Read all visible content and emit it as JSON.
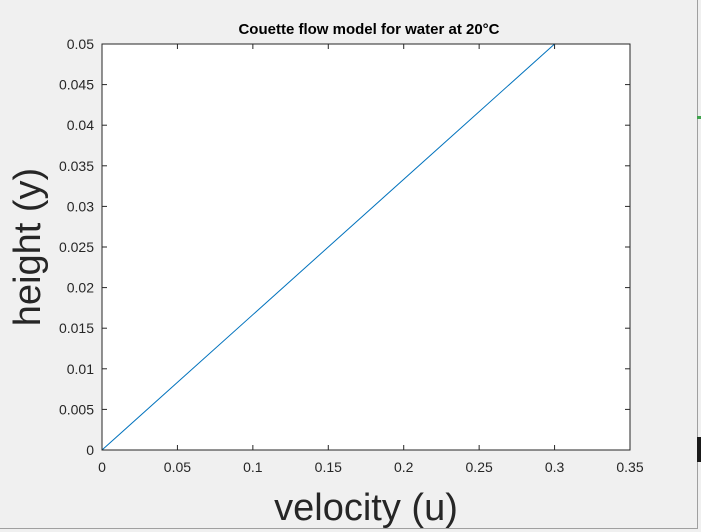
{
  "chart_data": {
    "type": "line",
    "title": "Couette flow model for water at 20°C",
    "xlabel": "velocity (u)",
    "ylabel": "height (y)",
    "xlim": [
      0,
      0.35
    ],
    "ylim": [
      0,
      0.05
    ],
    "xticks": [
      0,
      0.05,
      0.1,
      0.15,
      0.2,
      0.25,
      0.3,
      0.35
    ],
    "xtick_labels": [
      "0",
      "0.05",
      "0.1",
      "0.15",
      "0.2",
      "0.25",
      "0.3",
      "0.35"
    ],
    "yticks": [
      0,
      0.005,
      0.01,
      0.015,
      0.02,
      0.025,
      0.03,
      0.035,
      0.04,
      0.045,
      0.05
    ],
    "ytick_labels": [
      "0",
      "0.005",
      "0.01",
      "0.015",
      "0.02",
      "0.025",
      "0.03",
      "0.035",
      "0.04",
      "0.045",
      "0.05"
    ],
    "grid": false,
    "series": [
      {
        "x": [
          0,
          0.3
        ],
        "y": [
          0,
          0.05
        ],
        "color": "#0072BD"
      }
    ]
  },
  "colors": {
    "figure_background": "#f0f0f0",
    "plot_background": "#ffffff",
    "axis": "#262626",
    "line": "#0072BD"
  }
}
